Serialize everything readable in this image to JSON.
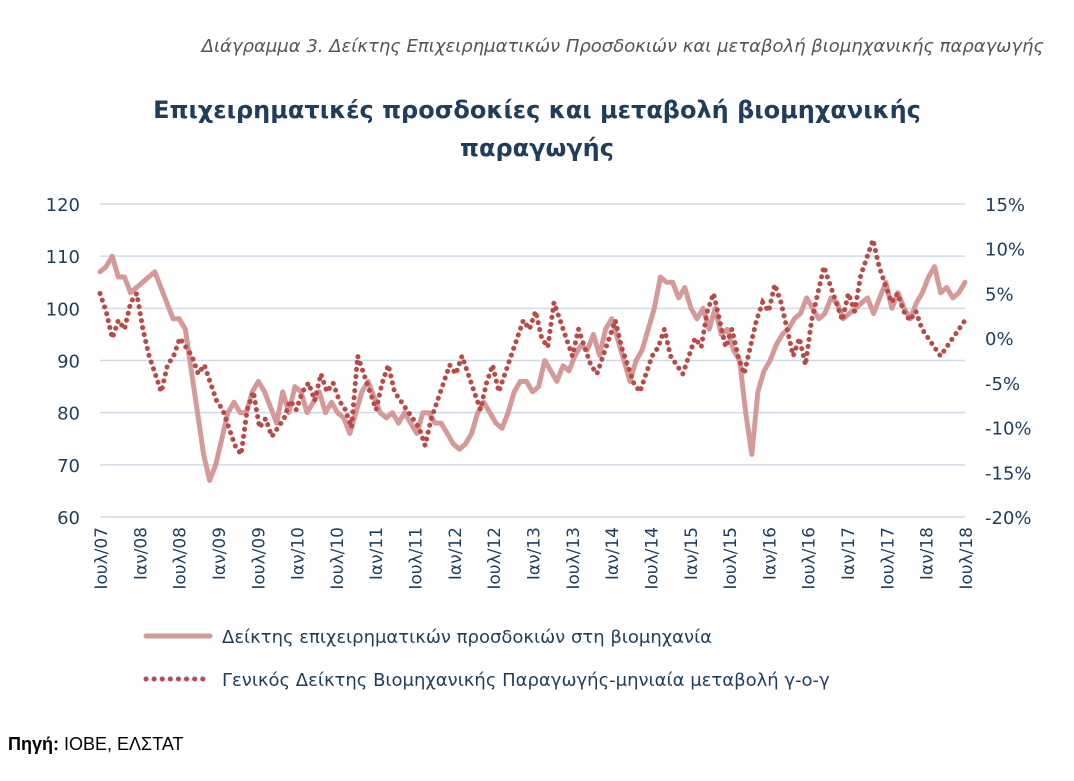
{
  "caption": "Διάγραμμα 3. Δείκτης Επιχειρηματικών Προσδοκιών και μεταβολή βιομηχανικής παραγωγής",
  "source": {
    "label": "Πηγή:",
    "value": "ΙΟΒΕ, ΕΛΣΤΑΤ"
  },
  "colors": {
    "title": "#1f3d5c",
    "axis_text": "#1f3d5c",
    "grid": "#cfdbe7",
    "line": "#d59a98",
    "dots": "#b94a48"
  },
  "chart_data": {
    "type": "line",
    "title_lines": [
      "Επιχειρηματικές προσδοκίες και μεταβολή βιομηχανικής",
      "παραγωγής"
    ],
    "grid": true,
    "legend_position": "bottom",
    "x_labels": [
      "Ιουλ/07",
      "Ιαν/08",
      "Ιουλ/08",
      "Ιαν/09",
      "Ιουλ/09",
      "Ιαν/10",
      "Ιουλ/10",
      "Ιαν/11",
      "Ιουλ/11",
      "Ιαν/12",
      "Ιουλ/12",
      "Ιαν/13",
      "Ιουλ/13",
      "Ιαν/14",
      "Ιουλ/14",
      "Ιαν/15",
      "Ιουλ/15",
      "Ιαν/16",
      "Ιουλ/16",
      "Ιαν/17",
      "Ιουλ/17",
      "Ιαν/18",
      "Ιουλ/18"
    ],
    "y_left": {
      "min": 60,
      "max": 120,
      "ticks": [
        "60",
        "70",
        "80",
        "90",
        "100",
        "110",
        "120"
      ]
    },
    "y_right": {
      "min": -20,
      "max": 15,
      "ticks": [
        "-20%",
        "-15%",
        "-10%",
        "-5%",
        "0%",
        "5%",
        "10%",
        "15%"
      ]
    },
    "series": [
      {
        "name": "Δείκτης επιχειρηματικών προσδοκιών στη βιομηχανία",
        "axis": "left",
        "style": "line",
        "values": [
          107,
          108,
          110,
          106,
          106,
          103,
          104,
          105,
          106,
          107,
          104,
          101,
          98,
          98,
          96,
          88,
          80,
          72,
          67,
          70,
          75,
          80,
          82,
          80,
          80,
          84,
          86,
          84,
          81,
          78,
          84,
          80,
          85,
          84,
          80,
          82,
          84,
          80,
          82,
          80,
          79,
          76,
          80,
          84,
          86,
          83,
          80,
          79,
          80,
          78,
          80,
          78,
          76,
          80,
          80,
          78,
          78,
          76,
          74,
          73,
          74,
          76,
          80,
          82,
          80,
          78,
          77,
          80,
          84,
          86,
          86,
          84,
          85,
          90,
          88,
          86,
          89,
          88,
          91,
          93,
          92,
          95,
          91,
          96,
          98,
          94,
          90,
          86,
          90,
          92,
          96,
          100,
          106,
          105,
          105,
          102,
          104,
          100,
          98,
          100,
          96,
          100,
          95,
          96,
          92,
          90,
          80,
          72,
          84,
          88,
          90,
          93,
          95,
          96,
          98,
          99,
          102,
          100,
          98,
          99,
          102,
          101,
          98,
          99,
          100,
          101,
          102,
          99,
          102,
          105,
          100,
          103,
          100,
          98,
          101,
          103,
          106,
          108,
          103,
          104,
          102,
          103,
          105
        ]
      },
      {
        "name": "Γενικός Δείκτης Βιομηχανικής Παραγωγής-μηνιαία μεταβολή γ-ο-γ",
        "axis": "right",
        "style": "dots",
        "values": [
          5,
          3,
          0,
          2,
          1,
          4,
          5,
          1,
          -2,
          -4,
          -6,
          -3,
          -2,
          0,
          -1,
          -2,
          -4,
          -3,
          -5,
          -7,
          -8,
          -10,
          -12,
          -13,
          -8,
          -6,
          -10,
          -9,
          -11,
          -10,
          -9,
          -7,
          -8,
          -6,
          -5,
          -7,
          -4,
          -6,
          -5,
          -7,
          -8,
          -10,
          -2,
          -4,
          -6,
          -8,
          -5,
          -3,
          -6,
          -7,
          -8,
          -9,
          -10,
          -12,
          -9,
          -7,
          -5,
          -3,
          -4,
          -2,
          -4,
          -6,
          -8,
          -5,
          -3,
          -6,
          -4,
          -2,
          0,
          2,
          1,
          3,
          0,
          -1,
          4,
          2,
          0,
          -2,
          1,
          -1,
          -3,
          -4,
          -2,
          0,
          2,
          -1,
          -3,
          -5,
          -6,
          -4,
          -2,
          -1,
          1,
          -2,
          -3,
          -4,
          -2,
          0,
          -1,
          3,
          5,
          2,
          -1,
          1,
          -2,
          -4,
          -1,
          2,
          4,
          3,
          6,
          4,
          1,
          -2,
          0,
          -3,
          2,
          5,
          8,
          6,
          4,
          2,
          5,
          3,
          7,
          9,
          11,
          8,
          6,
          4,
          5,
          3,
          2,
          3,
          1,
          0,
          -1,
          -2,
          -1,
          0,
          1,
          2
        ]
      }
    ]
  }
}
